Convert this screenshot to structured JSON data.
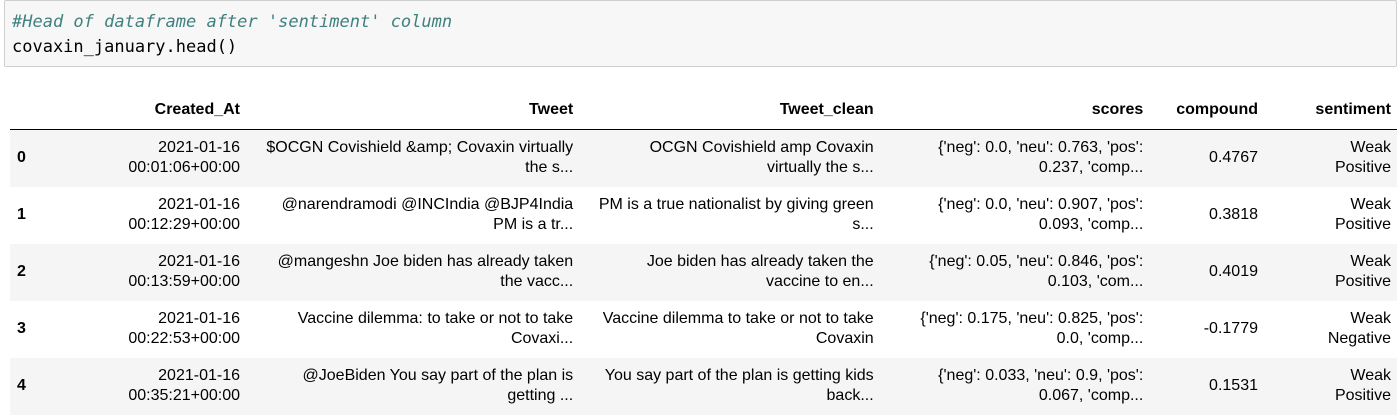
{
  "code": {
    "comment": "#Head of dataframe after 'sentiment' column",
    "statement": "covaxin_january.head()"
  },
  "table": {
    "columns": [
      "",
      "Created_At",
      "Tweet",
      "Tweet_clean",
      "scores",
      "compound",
      "sentiment"
    ],
    "rows": [
      {
        "index": "0",
        "created_date": "2021-01-16",
        "created_time": "00:01:06+00:00",
        "tweet_1": "$OCGN Covishield &amp; Covaxin virtually",
        "tweet_2": "the s...",
        "clean_1": "OCGN Covishield amp Covaxin",
        "clean_2": "virtually the s...",
        "scores_1": "{'neg': 0.0, 'neu': 0.763, 'pos':",
        "scores_2": "0.237, 'comp...",
        "compound": "0.4767",
        "sentiment_1": "Weak",
        "sentiment_2": "Positive"
      },
      {
        "index": "1",
        "created_date": "2021-01-16",
        "created_time": "00:12:29+00:00",
        "tweet_1": "@narendramodi @INCIndia @BJP4India",
        "tweet_2": "PM is a tr...",
        "clean_1": "PM is a true nationalist by giving green",
        "clean_2": "s...",
        "scores_1": "{'neg': 0.0, 'neu': 0.907, 'pos':",
        "scores_2": "0.093, 'comp...",
        "compound": "0.3818",
        "sentiment_1": "Weak",
        "sentiment_2": "Positive"
      },
      {
        "index": "2",
        "created_date": "2021-01-16",
        "created_time": "00:13:59+00:00",
        "tweet_1": "@mangeshn Joe biden has already taken",
        "tweet_2": "the vacc...",
        "clean_1": "Joe biden has already taken the",
        "clean_2": "vaccine to en...",
        "scores_1": "{'neg': 0.05, 'neu': 0.846, 'pos':",
        "scores_2": "0.103, 'com...",
        "compound": "0.4019",
        "sentiment_1": "Weak",
        "sentiment_2": "Positive"
      },
      {
        "index": "3",
        "created_date": "2021-01-16",
        "created_time": "00:22:53+00:00",
        "tweet_1": "Vaccine dilemma: to take or not to take",
        "tweet_2": "Covaxi...",
        "clean_1": "Vaccine dilemma to take or not to take",
        "clean_2": "Covaxin",
        "scores_1": "{'neg': 0.175, 'neu': 0.825, 'pos':",
        "scores_2": "0.0, 'comp...",
        "compound": "-0.1779",
        "sentiment_1": "Weak",
        "sentiment_2": "Negative"
      },
      {
        "index": "4",
        "created_date": "2021-01-16",
        "created_time": "00:35:21+00:00",
        "tweet_1": "@JoeBiden You say part of the plan is",
        "tweet_2": "getting ...",
        "clean_1": "You say part of the plan is getting kids",
        "clean_2": "back...",
        "scores_1": "{'neg': 0.033, 'neu': 0.9, 'pos':",
        "scores_2": "0.067, 'comp...",
        "compound": "0.1531",
        "sentiment_1": "Weak",
        "sentiment_2": "Positive"
      }
    ]
  }
}
